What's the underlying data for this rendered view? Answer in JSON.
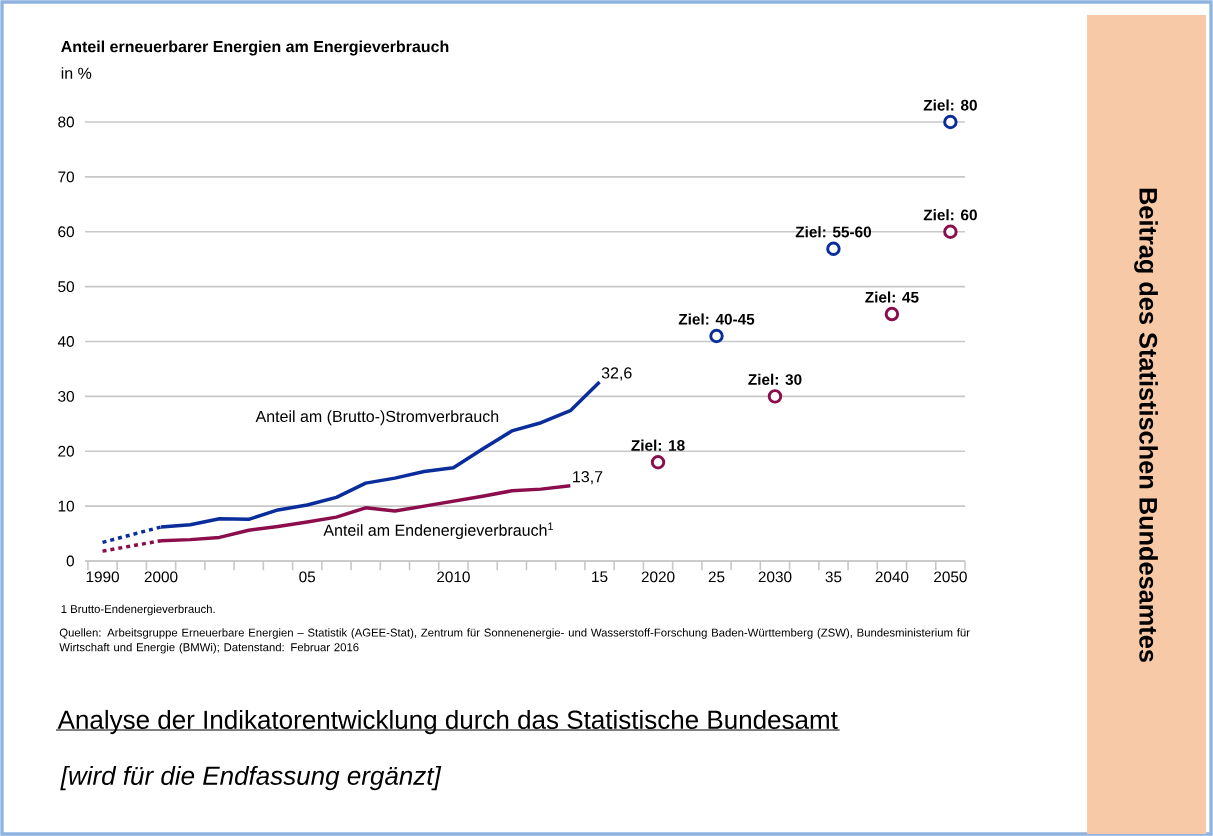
{
  "chart_data": {
    "type": "line",
    "title": "Anteil erneuerbarer Energien am Energieverbrauch",
    "ylabel": "in %",
    "categories": [
      "1990",
      null,
      "2000",
      null,
      null,
      null,
      null,
      "05",
      null,
      null,
      null,
      null,
      "2010",
      null,
      null,
      null,
      null,
      "15",
      null,
      "2020",
      null,
      "25",
      null,
      "2030",
      null,
      "35",
      null,
      "2040",
      null,
      "2050"
    ],
    "ylim": [
      0,
      80
    ],
    "yticks": [
      0,
      10,
      20,
      30,
      40,
      50,
      60,
      70,
      80
    ],
    "grid": "y",
    "series": [
      {
        "color": "#0a2d9c",
        "line_style": "dotted",
        "values": [
          3.4,
          null,
          6.2,
          null,
          null,
          null,
          null,
          null,
          null,
          null,
          null,
          null,
          null,
          null,
          null,
          null,
          null,
          null,
          null,
          null,
          null,
          null,
          null,
          null,
          null,
          null,
          null,
          null,
          null,
          null
        ]
      },
      {
        "name": "Anteil am (Brutto-)Stromverbrauch",
        "color": "#0a2d9c",
        "line_style": "solid",
        "values": [
          null,
          null,
          6.2,
          6.6,
          7.7,
          7.6,
          9.3,
          10.2,
          11.6,
          14.2,
          15.1,
          16.3,
          17.0,
          20.4,
          23.7,
          25.2,
          27.4,
          32.6,
          null,
          null,
          null,
          null,
          null,
          null,
          null,
          null,
          null,
          null,
          null,
          null
        ],
        "value_labels": [
          null,
          null,
          null,
          null,
          null,
          null,
          null,
          null,
          null,
          null,
          null,
          null,
          null,
          null,
          null,
          null,
          null,
          "32,6",
          null,
          null,
          null,
          null,
          null,
          null,
          null,
          null,
          null,
          null,
          null,
          null
        ]
      },
      {
        "color": "#8c0d4b",
        "line_style": "dotted",
        "values": [
          1.8,
          null,
          3.7,
          null,
          null,
          null,
          null,
          null,
          null,
          null,
          null,
          null,
          null,
          null,
          null,
          null,
          null,
          null,
          null,
          null,
          null,
          null,
          null,
          null,
          null,
          null,
          null,
          null,
          null,
          null
        ]
      },
      {
        "name": "Anteil am Endenergieverbrauch$^{1}$",
        "color": "#8c0d4b",
        "line_style": "solid",
        "values": [
          null,
          null,
          3.7,
          3.9,
          4.3,
          5.6,
          6.3,
          7.1,
          8.0,
          9.7,
          9.1,
          10.0,
          10.9,
          11.8,
          12.8,
          13.1,
          13.7,
          null,
          null,
          null,
          null,
          null,
          null,
          null,
          null,
          null,
          null,
          null,
          null,
          null
        ],
        "value_labels": [
          null,
          null,
          null,
          null,
          null,
          null,
          null,
          null,
          null,
          null,
          null,
          null,
          null,
          null,
          null,
          null,
          "13,7",
          null,
          null,
          null,
          null,
          null,
          null,
          null,
          null,
          null,
          null,
          null,
          null,
          null
        ]
      },
      {
        "type": "scatter",
        "marker": "circle",
        "color": "#0a2d9c",
        "values": [
          null,
          null,
          null,
          null,
          null,
          null,
          null,
          null,
          null,
          null,
          null,
          null,
          null,
          null,
          null,
          null,
          null,
          null,
          null,
          null,
          null,
          41.0,
          null,
          null,
          null,
          56.9,
          null,
          null,
          null,
          80
        ],
        "value_labels": [
          null,
          null,
          null,
          null,
          null,
          null,
          null,
          null,
          null,
          null,
          null,
          null,
          null,
          null,
          null,
          null,
          null,
          null,
          null,
          null,
          null,
          "Ziel: 40-45",
          null,
          null,
          null,
          "Ziel: 55-60",
          null,
          null,
          null,
          "Ziel: 80"
        ]
      },
      {
        "type": "scatter",
        "marker": "circle",
        "color": "#8c0d4b",
        "values": [
          null,
          null,
          null,
          null,
          null,
          null,
          null,
          null,
          null,
          null,
          null,
          null,
          null,
          null,
          null,
          null,
          null,
          null,
          null,
          18,
          null,
          null,
          null,
          30,
          null,
          null,
          null,
          45,
          null,
          60
        ],
        "value_labels": [
          null,
          null,
          null,
          null,
          null,
          null,
          null,
          null,
          null,
          null,
          null,
          null,
          null,
          null,
          null,
          null,
          null,
          null,
          null,
          "Ziel: 18",
          null,
          null,
          null,
          "Ziel: 30",
          null,
          null,
          null,
          "Ziel: 45",
          null,
          "Ziel: 60"
        ]
      }
    ],
    "annotations": [
      "1 Brutto-Endenergieverbrauch.",
      "Quellen:  Arbeitsgruppe Erneuerbare Energien – Statistik (AGEE-Stat), Zentrum für Sonnenenergie- und Wasserstoff-Forschung Baden-Württemberg (ZSW), Bundesministerium für Wirtschaft und Energie (BMWi); Datenstand: Februar 2016",
      "Analyse der Indikatorentwicklung durch das Statistische Bundesamt",
      "[wird für die Endfassung ergänzt]",
      "Beitrag des Statistischen Bundesamtes"
    ]
  }
}
